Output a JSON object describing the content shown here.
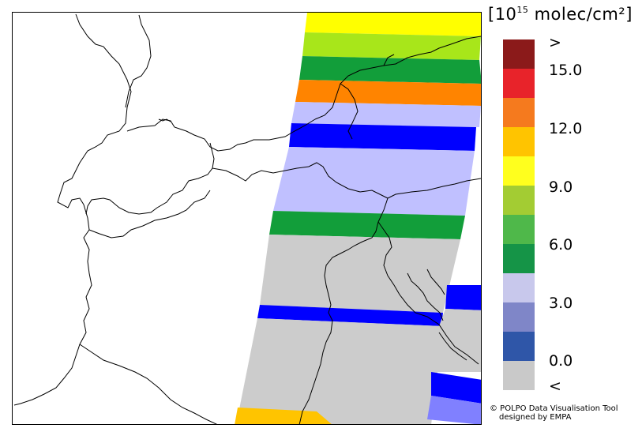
{
  "legend": {
    "title_prefix": "[10",
    "title_exponent": "15",
    "title_suffix": " molec/cm²]",
    "swatches": [
      {
        "level": "above",
        "color": "#8b1a1a"
      },
      {
        "level": "15.0-above",
        "color": "#e8232a"
      },
      {
        "level": "13.5-15.0",
        "color": "#f57a1e"
      },
      {
        "level": "12.0-13.5",
        "color": "#ffc400"
      },
      {
        "level": "10.5-12.0",
        "color": "#ffff1e"
      },
      {
        "level": "9.0-10.5",
        "color": "#a3cc33"
      },
      {
        "level": "7.5-9.0",
        "color": "#4fb84a"
      },
      {
        "level": "6.0-7.5",
        "color": "#159447"
      },
      {
        "level": "4.5-6.0",
        "color": "#c8c8ec"
      },
      {
        "level": "3.0-4.5",
        "color": "#7f86c8"
      },
      {
        "level": "1.5-3.0",
        "color": "#2f56a8"
      },
      {
        "level": "below",
        "color": "#c9c9c9"
      }
    ],
    "tick_labels": [
      ">",
      "15.0",
      "12.0",
      "9.0",
      "6.0",
      "3.0",
      "0.0",
      "<"
    ]
  },
  "map": {
    "strips": [
      {
        "value_class": "12.0-13.5",
        "color": "#ffff00"
      },
      {
        "value_class": "9.0-10.5",
        "color": "#a8e61a"
      },
      {
        "value_class": "6.0-7.5",
        "color": "#129e3a"
      },
      {
        "value_class": "13.5-15.0",
        "color": "#ff8400"
      },
      {
        "value_class": "3.0-4.5",
        "color": "#c0c0ff"
      },
      {
        "value_class": "0.0-1.5",
        "color": "#0000ff"
      },
      {
        "value_class": "3.0-4.5",
        "color": "#c0c0ff"
      },
      {
        "value_class": "6.0-7.5",
        "color": "#129e3a"
      },
      {
        "value_class": "below",
        "color": "#cccccc"
      },
      {
        "value_class": "0.0-1.5",
        "color": "#0000ff"
      },
      {
        "value_class": "below",
        "color": "#cccccc"
      },
      {
        "value_class": "0.0-1.5",
        "color": "#0000ff"
      },
      {
        "value_class": "1.5-3.0",
        "color": "#8080ff"
      },
      {
        "value_class": "12.0-13.5",
        "color": "#ffc400"
      }
    ]
  },
  "credit": {
    "line1": "© POLPO Data Visualisation Tool",
    "line2": "designed by EMPA"
  }
}
